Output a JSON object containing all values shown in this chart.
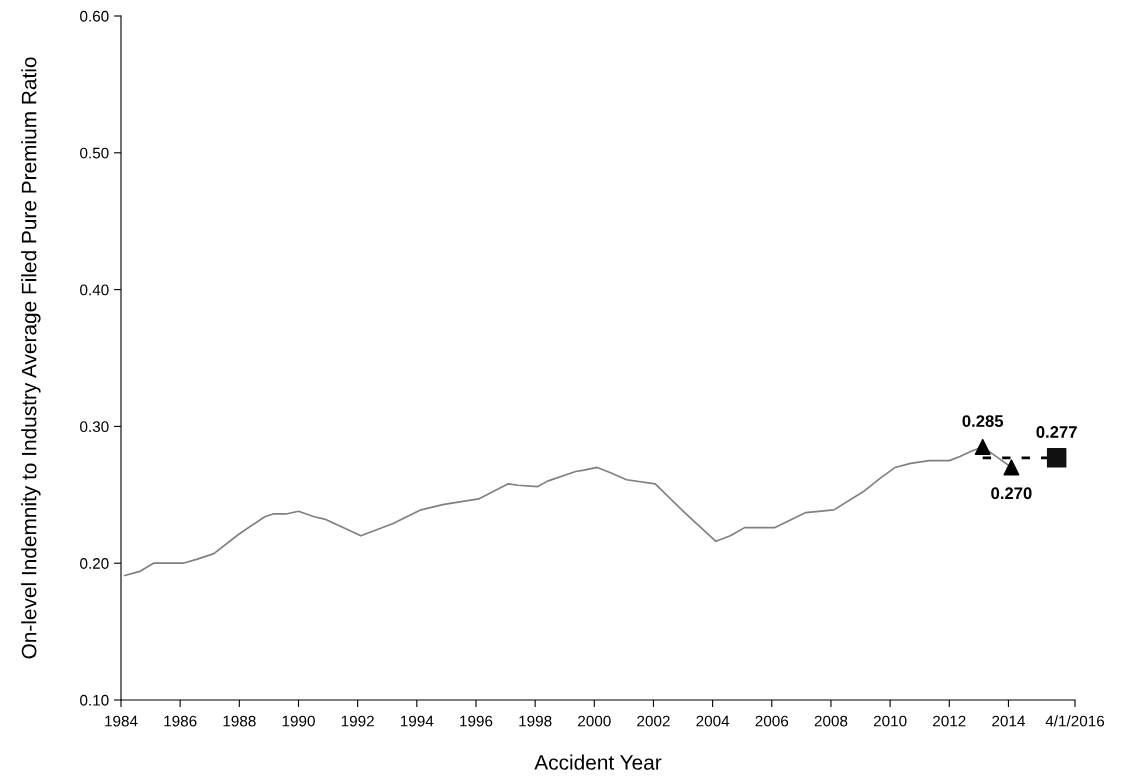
{
  "chart_data": {
    "type": "line",
    "xlabel": "Accident Year",
    "ylabel": "On-level Indemnity to Industry Average Filed Pure Premium Ratio",
    "xlim": [
      1984,
      2016.25
    ],
    "xticks": [
      1984,
      1986,
      1988,
      1990,
      1992,
      1994,
      1996,
      1998,
      2000,
      2002,
      2004,
      2006,
      2008,
      2010,
      2012,
      2014,
      {
        "value": 2016.25,
        "label": "4/1/2016"
      }
    ],
    "ylim": [
      0.1,
      0.6
    ],
    "yticks": [
      {
        "value": 0.1,
        "label": "0.10"
      },
      {
        "value": 0.2,
        "label": "0.20"
      },
      {
        "value": 0.3,
        "label": "0.30"
      },
      {
        "value": 0.4,
        "label": "0.40"
      },
      {
        "value": 0.5,
        "label": "0.50"
      },
      {
        "value": 0.6,
        "label": "0.60"
      }
    ],
    "grid": false,
    "legend": false,
    "series": [
      {
        "color": "#808080",
        "line_style": "solid",
        "marker": "none",
        "x": [
          1984.13,
          1984.63,
          1985.1,
          1986.1,
          1986.58,
          1987.14,
          1987.97,
          1988.86,
          1989.14,
          1989.58,
          1990.0,
          1990.53,
          1990.92,
          1992.11,
          1993.2,
          1994.14,
          1994.53,
          1994.92,
          1996.09,
          1997.09,
          1997.42,
          1998.09,
          1998.42,
          1999.37,
          1999.65,
          2000.1,
          2000.57,
          2001.09,
          2002.06,
          2003.1,
          2004.11,
          2004.6,
          2005.08,
          2006.09,
          2007.15,
          2008.1,
          2009.14,
          2009.66,
          2010.17,
          2010.69,
          2011.33,
          2012.0,
          2012.36,
          2012.76,
          2013.13,
          2014.1
        ],
        "values": [
          0.191,
          0.194,
          0.2,
          0.2,
          0.203,
          0.207,
          0.221,
          0.234,
          0.236,
          0.236,
          0.238,
          0.234,
          0.232,
          0.22,
          0.229,
          0.239,
          0.241,
          0.243,
          0.247,
          0.258,
          0.257,
          0.256,
          0.26,
          0.267,
          0.268,
          0.27,
          0.266,
          0.261,
          0.258,
          0.236,
          0.216,
          0.22,
          0.226,
          0.226,
          0.237,
          0.239,
          0.253,
          0.262,
          0.27,
          0.273,
          0.275,
          0.275,
          0.278,
          0.282,
          0.285,
          0.27
        ]
      },
      {
        "type": "line",
        "color": "#000000",
        "line_style": "dashed",
        "marker": "none",
        "x": [
          2013.13,
          2015.63
        ],
        "values": [
          0.277,
          0.277
        ]
      },
      {
        "type": "scatter",
        "color": "#000000",
        "marker": "triangle",
        "x": [
          2013.13,
          2014.1
        ],
        "values": [
          0.285,
          0.27
        ]
      },
      {
        "type": "scatter",
        "color": "#111111",
        "marker": "square",
        "x": [
          2015.63
        ],
        "values": [
          0.277
        ]
      }
    ],
    "annotations": [
      {
        "text": "0.285",
        "x": 2013.13,
        "y": 0.285
      },
      {
        "text": "0.270",
        "x": 2014.1,
        "y": 0.27
      },
      {
        "text": "0.277",
        "x": 2015.63,
        "y": 0.277
      }
    ]
  }
}
